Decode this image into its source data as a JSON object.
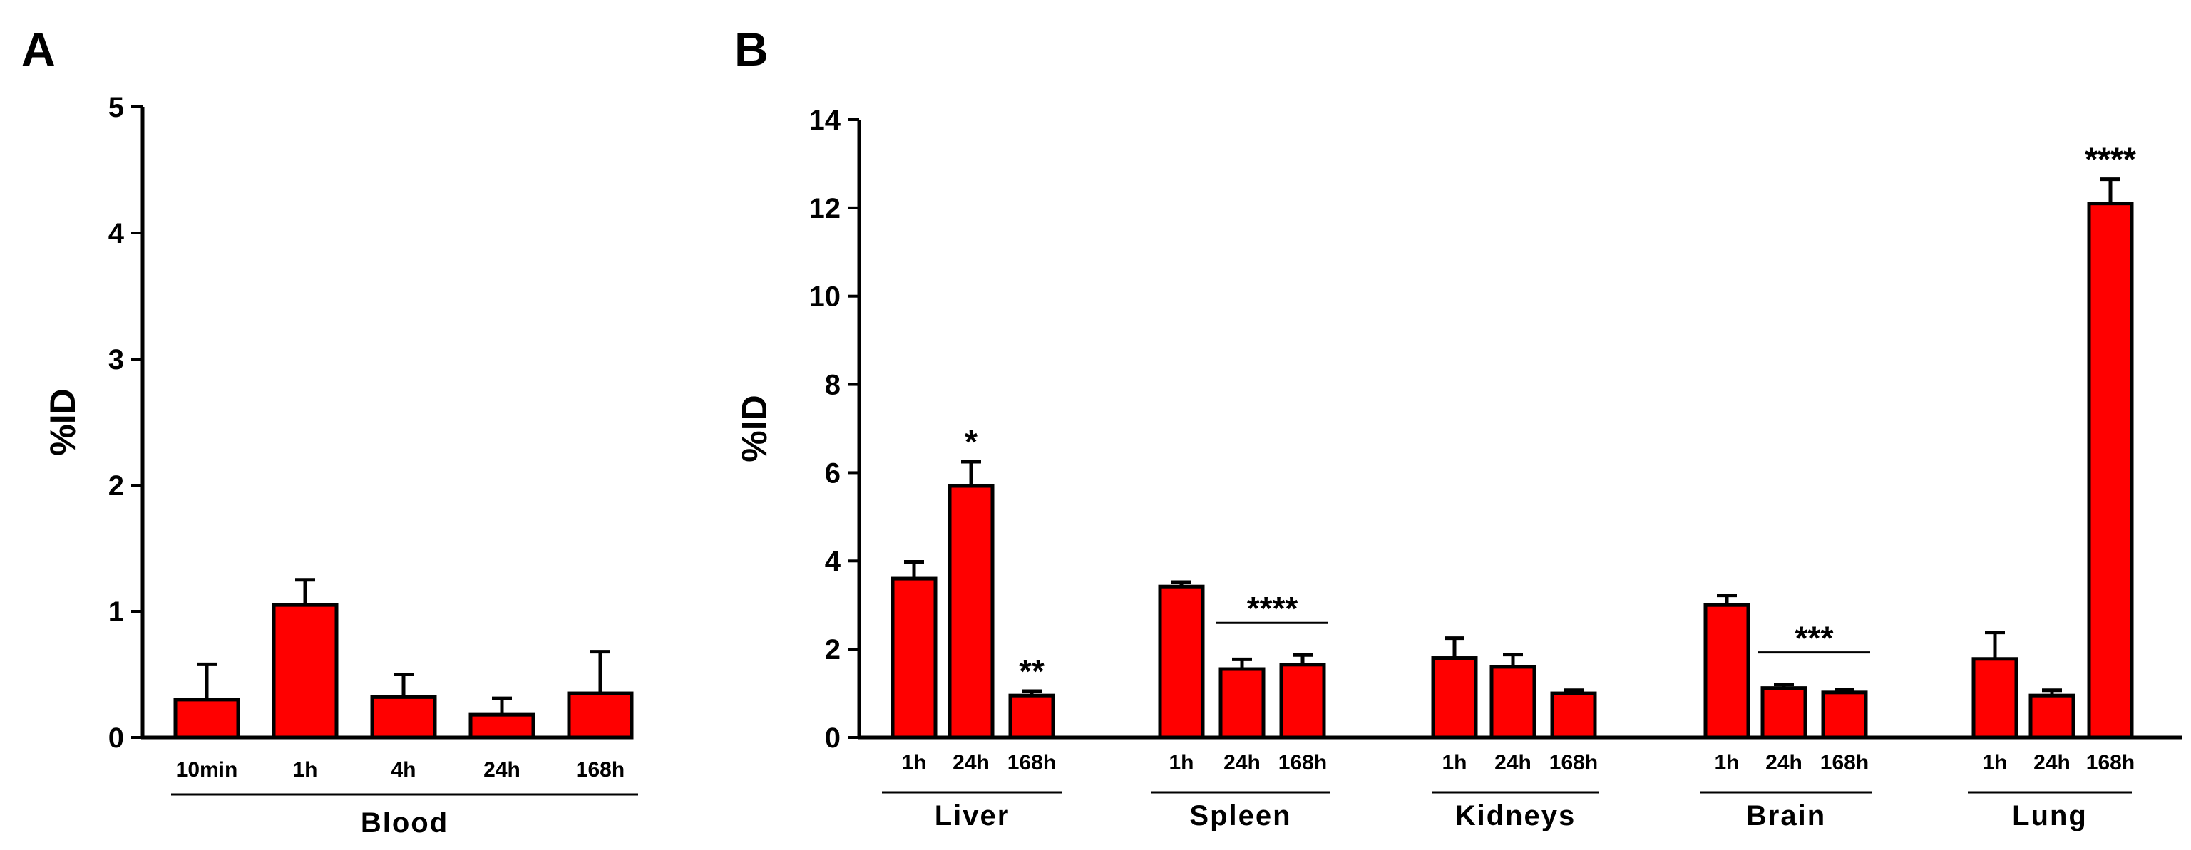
{
  "chart_data": [
    {
      "panel": "A",
      "type": "bar",
      "ylabel": "%ID",
      "ylim": [
        0,
        5
      ],
      "yticks": [
        "0",
        "1",
        "2",
        "3",
        "4",
        "5"
      ],
      "groups": [
        {
          "name": "Blood",
          "categories": [
            "10min",
            "1h",
            "4h",
            "24h",
            "168h"
          ],
          "values": [
            0.3,
            1.05,
            0.32,
            0.18,
            0.35
          ],
          "errors": [
            0.28,
            0.2,
            0.18,
            0.13,
            0.33
          ],
          "significance": []
        }
      ]
    },
    {
      "panel": "B",
      "type": "bar",
      "ylabel": "%ID",
      "ylim": [
        0,
        14
      ],
      "yticks": [
        "0",
        "2",
        "4",
        "6",
        "8",
        "10",
        "12",
        "14"
      ],
      "groups": [
        {
          "name": "Liver",
          "categories": [
            "1h",
            "24h",
            "168h"
          ],
          "values": [
            3.6,
            5.7,
            0.95
          ],
          "errors": [
            0.38,
            0.55,
            0.1
          ],
          "significance": [
            {
              "label": "*",
              "from": 1,
              "to": 1
            },
            {
              "label": "**",
              "from": 2,
              "to": 2
            }
          ]
        },
        {
          "name": "Spleen",
          "categories": [
            "1h",
            "24h",
            "168h"
          ],
          "values": [
            3.42,
            1.55,
            1.65
          ],
          "errors": [
            0.1,
            0.22,
            0.22
          ],
          "significance": [
            {
              "label": "****",
              "from": 1,
              "to": 2
            }
          ]
        },
        {
          "name": "Kidneys",
          "categories": [
            "1h",
            "24h",
            "168h"
          ],
          "values": [
            1.8,
            1.6,
            1.0
          ],
          "errors": [
            0.45,
            0.28,
            0.07
          ],
          "significance": []
        },
        {
          "name": "Brain",
          "categories": [
            "1h",
            "24h",
            "168h"
          ],
          "values": [
            3.0,
            1.12,
            1.02
          ],
          "errors": [
            0.22,
            0.08,
            0.07
          ],
          "significance": [
            {
              "label": "***",
              "from": 1,
              "to": 2
            }
          ]
        },
        {
          "name": "Lung",
          "categories": [
            "1h",
            "24h",
            "168h"
          ],
          "values": [
            1.78,
            0.95,
            12.1
          ],
          "errors": [
            0.6,
            0.12,
            0.55
          ],
          "significance": [
            {
              "label": "****",
              "from": 2,
              "to": 2
            }
          ]
        }
      ]
    }
  ]
}
